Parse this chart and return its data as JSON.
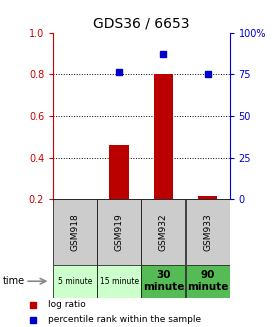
{
  "title": "GDS36 / 6653",
  "samples": [
    "GSM918",
    "GSM919",
    "GSM932",
    "GSM933"
  ],
  "time_labels": [
    "5 minute",
    "15 minute",
    "30\nminute",
    "90\nminute"
  ],
  "time_bg_light": "#ccffcc",
  "time_bg_dark": "#55bb55",
  "time_bg_colors": [
    "#ccffcc",
    "#ccffcc",
    "#55bb55",
    "#55bb55"
  ],
  "log_ratio": [
    null,
    0.46,
    0.8,
    0.215
  ],
  "log_ratio_base": 0.2,
  "percentile_pct": [
    null,
    76.5,
    87.5,
    75.5
  ],
  "ylim_left": [
    0.2,
    1.0
  ],
  "ylim_right": [
    0,
    100
  ],
  "yticks_left": [
    0.2,
    0.4,
    0.6,
    0.8,
    1.0
  ],
  "yticks_right": [
    0,
    25,
    50,
    75,
    100
  ],
  "bar_color": "#bb0000",
  "dot_color": "#0000cc",
  "sample_bg": "#cccccc",
  "left_tick_color": "#cc0000",
  "right_tick_color": "#0000cc",
  "grid_yticks": [
    0.4,
    0.6,
    0.8
  ]
}
